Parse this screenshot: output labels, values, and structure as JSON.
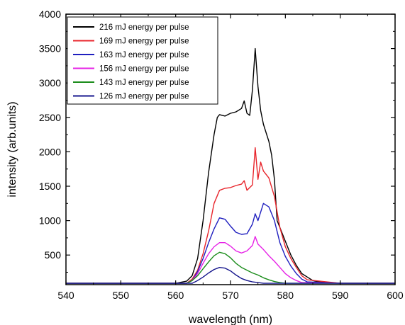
{
  "chart_data": {
    "type": "line",
    "xlabel": "wavelength (nm)",
    "ylabel": "intensity (arb.units)",
    "xlim": [
      540,
      600
    ],
    "ylim": [
      70,
      4000
    ],
    "xticks": [
      540,
      550,
      560,
      570,
      580,
      590,
      600
    ],
    "yticks": [
      500,
      1000,
      1500,
      2000,
      2500,
      3000,
      3500,
      4000
    ],
    "grid": false,
    "legend_placement": "top-left",
    "series": [
      {
        "name": "216  mJ energy per pulse",
        "color": "#000000",
        "x": [
          540,
          560,
          562,
          563,
          564,
          565,
          566,
          567,
          567.6,
          568,
          569,
          570,
          571,
          572,
          572.5,
          573,
          573.5,
          574,
          574.5,
          575,
          575.5,
          576,
          577,
          577.5,
          578,
          578.5,
          579,
          580,
          581,
          582,
          583,
          584,
          585,
          586,
          588,
          590,
          600
        ],
        "y": [
          90,
          90,
          120,
          200,
          450,
          1000,
          1700,
          2250,
          2500,
          2540,
          2520,
          2560,
          2580,
          2630,
          2740,
          2560,
          2530,
          2900,
          3500,
          2950,
          2600,
          2400,
          2150,
          1950,
          1600,
          1000,
          900,
          700,
          500,
          350,
          230,
          180,
          130,
          110,
          100,
          90,
          90
        ]
      },
      {
        "name": "169  mJ energy per pulse",
        "color": "#e8242b",
        "x": [
          540,
          562,
          563,
          564,
          565,
          566,
          567,
          568,
          569,
          570,
          571,
          572,
          572.5,
          573,
          574,
          574.5,
          575,
          575.5,
          576,
          577,
          578,
          579,
          580,
          581,
          582,
          583,
          584,
          590,
          600
        ],
        "y": [
          90,
          90,
          150,
          280,
          520,
          850,
          1250,
          1440,
          1470,
          1480,
          1510,
          1530,
          1580,
          1440,
          1520,
          2060,
          1600,
          1850,
          1720,
          1620,
          1350,
          900,
          620,
          450,
          320,
          200,
          140,
          90,
          90
        ]
      },
      {
        "name": "163  mJ energy per pulse",
        "color": "#1f1fbf",
        "x": [
          540,
          562,
          563,
          564,
          565,
          566,
          567,
          568,
          569,
          570,
          571,
          572,
          573,
          574,
          574.5,
          575,
          576,
          577,
          578,
          579,
          580,
          581,
          582,
          583,
          584,
          590,
          600
        ],
        "y": [
          90,
          90,
          130,
          260,
          450,
          680,
          880,
          1040,
          1020,
          920,
          830,
          800,
          810,
          950,
          1100,
          1000,
          1250,
          1200,
          1000,
          680,
          480,
          340,
          230,
          150,
          110,
          90,
          90
        ]
      },
      {
        "name": "156  mJ energy per pulse",
        "color": "#e622e6",
        "x": [
          540,
          562,
          563,
          564,
          565,
          566,
          567,
          568,
          569,
          570,
          571,
          572,
          573,
          574,
          574.5,
          575,
          576,
          577,
          578,
          579,
          580,
          581,
          582,
          583,
          590,
          600
        ],
        "y": [
          90,
          90,
          130,
          230,
          380,
          520,
          620,
          680,
          680,
          630,
          560,
          530,
          560,
          640,
          770,
          660,
          580,
          490,
          410,
          320,
          230,
          170,
          130,
          100,
          90,
          90
        ]
      },
      {
        "name": "143  mJ energy per pulse",
        "color": "#1a8c1a",
        "x": [
          540,
          562,
          563,
          564,
          565,
          566,
          567,
          568,
          569,
          570,
          571,
          572,
          573,
          574,
          575,
          576,
          577,
          578,
          579,
          580,
          590,
          600
        ],
        "y": [
          90,
          90,
          130,
          200,
          300,
          400,
          490,
          540,
          520,
          460,
          380,
          320,
          280,
          240,
          210,
          170,
          140,
          115,
          100,
          90,
          90,
          90
        ]
      },
      {
        "name": "126  mJ energy per pulse",
        "color": "#14148c",
        "x": [
          540,
          563,
          564,
          565,
          566,
          567,
          568,
          569,
          570,
          571,
          572,
          573,
          574,
          575,
          576,
          590,
          600
        ],
        "y": [
          90,
          90,
          130,
          180,
          240,
          290,
          320,
          310,
          270,
          210,
          160,
          130,
          110,
          100,
          90,
          90,
          90
        ]
      }
    ]
  }
}
